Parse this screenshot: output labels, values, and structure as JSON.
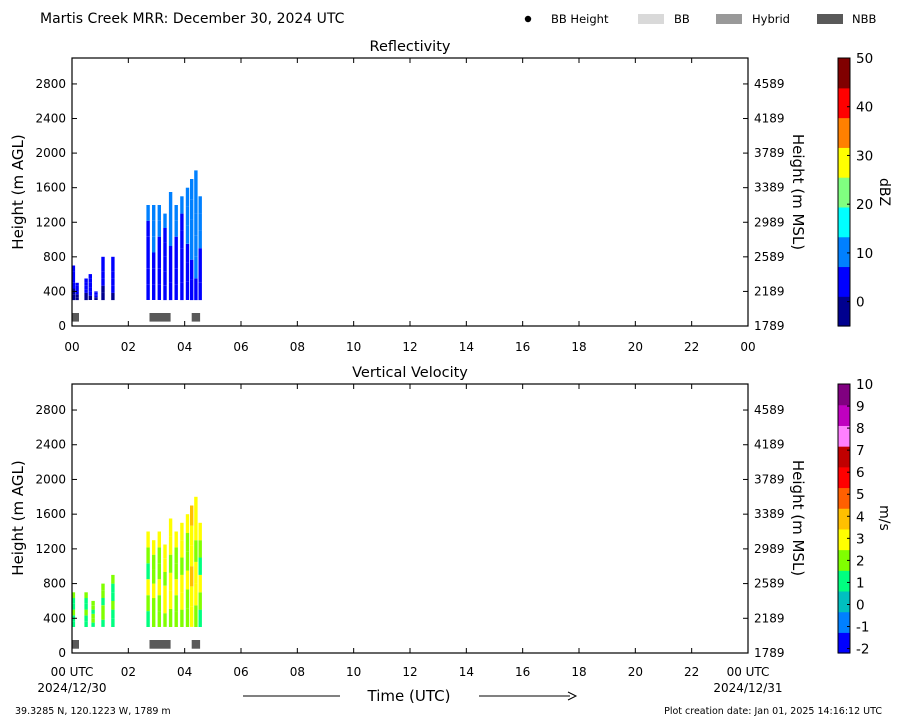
{
  "header": {
    "title": "Martis Creek MRR:  December 30, 2024 UTC",
    "legend": [
      {
        "label": "BB Height",
        "kind": "dot",
        "color": "#000000"
      },
      {
        "label": "BB",
        "kind": "rect",
        "color": "#d9d9d9"
      },
      {
        "label": "Hybrid",
        "kind": "rect",
        "color": "#999999"
      },
      {
        "label": "NBB",
        "kind": "rect",
        "color": "#595959"
      }
    ]
  },
  "x_axis": {
    "label": "Time (UTC)",
    "ticks": [
      "00",
      "02",
      "04",
      "06",
      "08",
      "10",
      "12",
      "14",
      "16",
      "18",
      "20",
      "22",
      "00"
    ],
    "bottom_ticks": [
      "00 UTC",
      "02",
      "04",
      "06",
      "08",
      "10",
      "12",
      "14",
      "16",
      "18",
      "20",
      "22",
      "00 UTC"
    ],
    "start_date": "2024/12/30",
    "end_date": "2024/12/31",
    "range_hours": [
      0,
      24
    ]
  },
  "footer": {
    "location": "39.3285 N, 120.1223 W, 1789 m",
    "creation": "Plot creation date: Jan 01, 2025 14:16:12 UTC"
  },
  "chart_data": [
    {
      "type": "heatmap",
      "title": "Reflectivity",
      "ylabel": "Height (m AGL)",
      "y2label": "Height (m MSL)",
      "ylim": [
        0,
        3100
      ],
      "yticks": [
        0,
        400,
        800,
        1200,
        1600,
        2000,
        2400,
        2800
      ],
      "y2ticks": [
        "1789",
        "2189",
        "2589",
        "2989",
        "3389",
        "3789",
        "4189",
        "4589"
      ],
      "colorbar": {
        "label": "dBZ",
        "min": -5,
        "max": 50,
        "ticks": [
          0,
          10,
          20,
          30,
          40,
          50
        ]
      },
      "colors": [
        "#00008f",
        "#0000ff",
        "#0080ff",
        "#00ffff",
        "#80ff80",
        "#ffff00",
        "#ff8000",
        "#ff0000",
        "#800000"
      ],
      "echo_columns": [
        {
          "t": 0.05,
          "top": 700,
          "v": 2
        },
        {
          "t": 0.18,
          "top": 500,
          "v": 1
        },
        {
          "t": 0.5,
          "top": 550,
          "v": 2
        },
        {
          "t": 0.65,
          "top": 600,
          "v": 3
        },
        {
          "t": 0.85,
          "top": 400,
          "v": 1
        },
        {
          "t": 1.1,
          "top": 800,
          "v": 2
        },
        {
          "t": 1.45,
          "top": 800,
          "v": 3
        },
        {
          "t": 2.7,
          "top": 1400,
          "v": 4
        },
        {
          "t": 2.9,
          "top": 1400,
          "v": 6
        },
        {
          "t": 3.1,
          "top": 1400,
          "v": 5
        },
        {
          "t": 3.3,
          "top": 1300,
          "v": 4
        },
        {
          "t": 3.5,
          "top": 1550,
          "v": 6
        },
        {
          "t": 3.7,
          "top": 1400,
          "v": 5
        },
        {
          "t": 3.9,
          "top": 1500,
          "v": 4
        },
        {
          "t": 4.1,
          "top": 1600,
          "v": 6
        },
        {
          "t": 4.25,
          "top": 1700,
          "v": 8
        },
        {
          "t": 4.4,
          "top": 1800,
          "v": 9
        },
        {
          "t": 4.55,
          "top": 1500,
          "v": 7
        }
      ],
      "bb_segments": [
        {
          "start": 0.0,
          "end": 0.25,
          "class": "NBB"
        },
        {
          "start": 2.75,
          "end": 3.5,
          "class": "NBB"
        },
        {
          "start": 4.25,
          "end": 4.55,
          "class": "NBB"
        }
      ]
    },
    {
      "type": "heatmap",
      "title": "Vertical Velocity",
      "ylabel": "Height (m AGL)",
      "y2label": "Height (m MSL)",
      "ylim": [
        0,
        3100
      ],
      "yticks": [
        0,
        400,
        800,
        1200,
        1600,
        2000,
        2400,
        2800
      ],
      "y2ticks": [
        "1789",
        "2189",
        "2589",
        "2989",
        "3389",
        "3789",
        "4189",
        "4589"
      ],
      "colorbar": {
        "label": "m/s",
        "min": -2.2,
        "max": 10,
        "ticks": [
          "-2",
          "-1",
          "0",
          "1",
          "2",
          "3",
          "4",
          "5",
          "6",
          "7",
          "8",
          "9",
          "10"
        ]
      },
      "colors": [
        "#0000ff",
        "#0080ff",
        "#00c0c0",
        "#00ff80",
        "#80ff00",
        "#ffff00",
        "#ffc000",
        "#ff6000",
        "#ff0000",
        "#c00000",
        "#ff80ff",
        "#c000c0",
        "#800080"
      ],
      "echo_columns": [
        {
          "t": 0.05,
          "top": 700,
          "v": 1.2
        },
        {
          "t": 0.5,
          "top": 700,
          "v": 1.5
        },
        {
          "t": 0.75,
          "top": 600,
          "v": 1.8
        },
        {
          "t": 1.1,
          "top": 800,
          "v": 1.6
        },
        {
          "t": 1.45,
          "top": 900,
          "v": 1.4
        },
        {
          "t": 2.7,
          "top": 1400,
          "v": 2.0
        },
        {
          "t": 2.9,
          "top": 1300,
          "v": 2.4
        },
        {
          "t": 3.1,
          "top": 1400,
          "v": 2.2
        },
        {
          "t": 3.3,
          "top": 1250,
          "v": 2.5
        },
        {
          "t": 3.5,
          "top": 1550,
          "v": 2.8
        },
        {
          "t": 3.7,
          "top": 1400,
          "v": 2.1
        },
        {
          "t": 3.9,
          "top": 1500,
          "v": 2.6
        },
        {
          "t": 4.1,
          "top": 1600,
          "v": 2.3
        },
        {
          "t": 4.25,
          "top": 1700,
          "v": 3.0
        },
        {
          "t": 4.4,
          "top": 1800,
          "v": 2.7
        },
        {
          "t": 4.55,
          "top": 1500,
          "v": 2.0
        }
      ],
      "bb_segments": [
        {
          "start": 0.0,
          "end": 0.25,
          "class": "NBB"
        },
        {
          "start": 2.75,
          "end": 3.5,
          "class": "NBB"
        },
        {
          "start": 4.25,
          "end": 4.55,
          "class": "NBB"
        }
      ]
    }
  ]
}
